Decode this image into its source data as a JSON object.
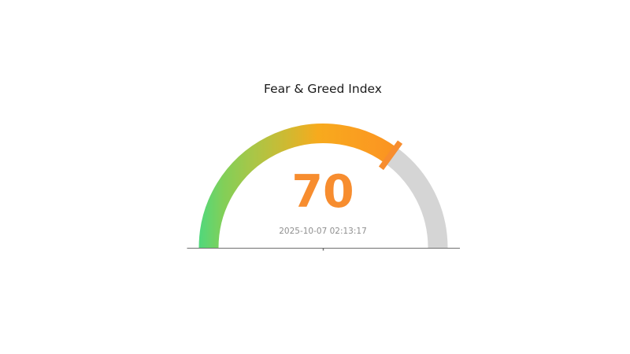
{
  "page": {
    "background": "#ffffff"
  },
  "chart_data": {
    "type": "gauge",
    "title": "Fear & Greed Index",
    "value": 70,
    "min": 0,
    "max": 100,
    "timestamp": "2025-10-07 02:13:17",
    "start_angle_deg": 180,
    "end_angle_deg": 0,
    "legend": null,
    "grid": false,
    "colors": {
      "gradient_stops": [
        {
          "offset": 0,
          "color": "#4fd87d"
        },
        {
          "offset": 0.1,
          "color": "#82cf58"
        },
        {
          "offset": 0.22,
          "color": "#a9c647"
        },
        {
          "offset": 0.36,
          "color": "#d0b931"
        },
        {
          "offset": 0.48,
          "color": "#f7aa1d"
        },
        {
          "offset": 0.7,
          "color": "#fb9a21"
        },
        {
          "offset": 1,
          "color": "#f8821f"
        }
      ],
      "remainder": "#d5d5d5",
      "pointer": "#f78d2f",
      "value_text": "#f78d2f",
      "timestamp_text": "#8f8f8f",
      "title_text": "#1a1a1a",
      "baseline": "#6e6e6e"
    }
  }
}
